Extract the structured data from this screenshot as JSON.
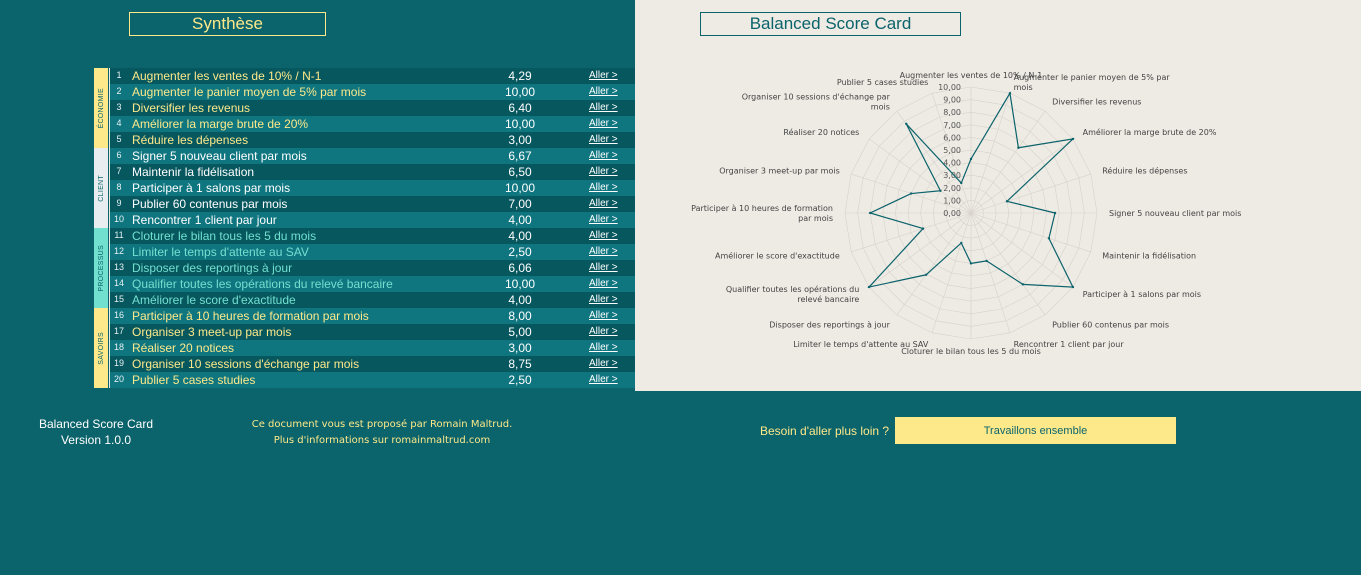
{
  "left": {
    "title": "Synthèse"
  },
  "right": {
    "title": "Balanced Score Card"
  },
  "categories": [
    {
      "key": "eco",
      "label": "ÉCONOMIE"
    },
    {
      "key": "cli",
      "label": "CLIENT"
    },
    {
      "key": "pro",
      "label": "PROCESSUS"
    },
    {
      "key": "sav",
      "label": "SAVOIRS"
    }
  ],
  "objectives": [
    {
      "num": "1",
      "label": "Augmenter les ventes de 10% / N-1",
      "value": "4,29",
      "link": "Aller >",
      "cat": "eco"
    },
    {
      "num": "2",
      "label": "Augmenter le panier moyen de 5% par mois",
      "value": "10,00",
      "link": "Aller >",
      "cat": "eco"
    },
    {
      "num": "3",
      "label": "Diversifier les revenus",
      "value": "6,40",
      "link": "Aller >",
      "cat": "eco"
    },
    {
      "num": "4",
      "label": "Améliorer la marge brute de 20%",
      "value": "10,00",
      "link": "Aller >",
      "cat": "eco"
    },
    {
      "num": "5",
      "label": "Réduire les dépenses",
      "value": "3,00",
      "link": "Aller >",
      "cat": "eco"
    },
    {
      "num": "6",
      "label": "Signer 5 nouveau client par mois",
      "value": "6,67",
      "link": "Aller >",
      "cat": "cli"
    },
    {
      "num": "7",
      "label": "Maintenir la fidélisation",
      "value": "6,50",
      "link": "Aller >",
      "cat": "cli"
    },
    {
      "num": "8",
      "label": "Participer à 1 salons par mois",
      "value": "10,00",
      "link": "Aller >",
      "cat": "cli"
    },
    {
      "num": "9",
      "label": "Publier 60 contenus par mois",
      "value": "7,00",
      "link": "Aller >",
      "cat": "cli"
    },
    {
      "num": "10",
      "label": "Rencontrer 1 client par jour",
      "value": "4,00",
      "link": "Aller >",
      "cat": "cli"
    },
    {
      "num": "11",
      "label": "Cloturer le bilan tous les 5 du mois",
      "value": "4,00",
      "link": "Aller >",
      "cat": "pro"
    },
    {
      "num": "12",
      "label": "Limiter le temps d'attente au SAV",
      "value": "2,50",
      "link": "Aller >",
      "cat": "pro"
    },
    {
      "num": "13",
      "label": "Disposer des reportings à jour",
      "value": "6,06",
      "link": "Aller >",
      "cat": "pro"
    },
    {
      "num": "14",
      "label": "Qualifier toutes les opérations du relevé bancaire",
      "value": "10,00",
      "link": "Aller >",
      "cat": "pro"
    },
    {
      "num": "15",
      "label": "Améliorer le score d'exactitude",
      "value": "4,00",
      "link": "Aller >",
      "cat": "pro"
    },
    {
      "num": "16",
      "label": "Participer à 10 heures de formation par mois",
      "value": "8,00",
      "link": "Aller >",
      "cat": "sav"
    },
    {
      "num": "17",
      "label": "Organiser 3 meet-up par mois",
      "value": "5,00",
      "link": "Aller >",
      "cat": "sav"
    },
    {
      "num": "18",
      "label": "Réaliser 20 notices",
      "value": "3,00",
      "link": "Aller >",
      "cat": "sav"
    },
    {
      "num": "19",
      "label": "Organiser 10 sessions d'échange par mois",
      "value": "8,75",
      "link": "Aller >",
      "cat": "sav"
    },
    {
      "num": "20",
      "label": "Publier 5 cases studies",
      "value": "2,50",
      "link": "Aller >",
      "cat": "sav"
    }
  ],
  "chart_data": {
    "type": "radar",
    "axis_labels": [
      "Augmenter les ventes de 10% / N-1",
      "Augmenter le panier moyen de 5% par mois",
      "Diversifier les revenus",
      "Améliorer la marge brute de 20%",
      "Réduire les dépenses",
      "Signer 5 nouveau client par mois",
      "Maintenir la fidélisation",
      "Participer à 1 salons par mois",
      "Publier 60 contenus par mois",
      "Rencontrer 1 client par jour",
      "Cloturer le bilan tous les 5 du mois",
      "Limiter le temps d'attente au SAV",
      "Disposer des reportings à jour",
      "Qualifier toutes les opérations du relevé bancaire",
      "Améliorer le score d'exactitude",
      "Participer à 10 heures de formation par mois",
      "Organiser 3 meet-up par mois",
      "Réaliser 20 notices",
      "Organiser 10 sessions d'échange par mois",
      "Publier 5 cases studies"
    ],
    "values": [
      4.29,
      10.0,
      6.4,
      10.0,
      3.0,
      6.67,
      6.5,
      10.0,
      7.0,
      4.0,
      4.0,
      2.5,
      6.06,
      10.0,
      4.0,
      8.0,
      5.0,
      3.0,
      8.75,
      2.5
    ],
    "range": [
      0,
      10
    ],
    "ticks": [
      "0,00",
      "1,00",
      "2,00",
      "3,00",
      "4,00",
      "5,00",
      "6,00",
      "7,00",
      "8,00",
      "9,00",
      "10,00"
    ],
    "grid": true,
    "line_color": "#0b636b",
    "grid_color": "#d6d2cc"
  },
  "footer": {
    "app_name": "Balanced Score Card",
    "version": "Version 1.0.0",
    "credit_line1": "Ce document vous est proposé par Romain Maltrud.",
    "credit_line2": "Plus d'informations sur romainmaltrud.com",
    "question": "Besoin d'aller plus loin ?",
    "cta_label": "Travaillons ensemble"
  },
  "colors": {
    "background": "#0b636b",
    "panel": "#eeeae4",
    "yellow": "#fde98a",
    "mint": "#72e0cf"
  }
}
